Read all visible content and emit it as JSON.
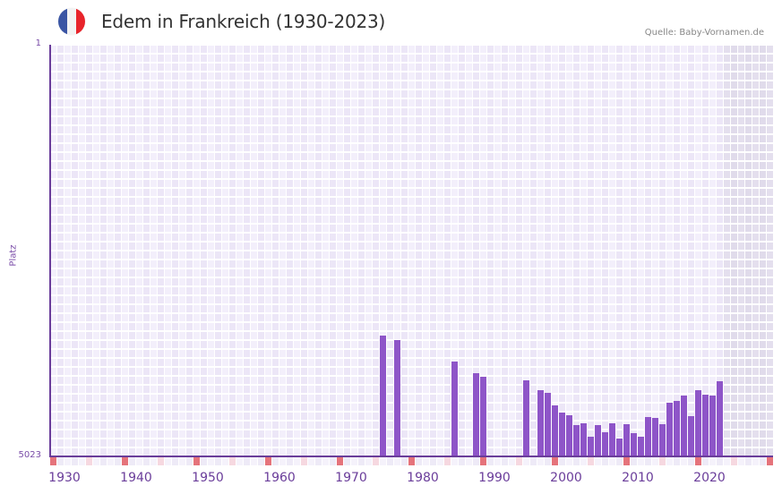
{
  "header": {
    "title": "Edem in Frankreich (1930-2023)",
    "source": "Quelle: Baby-Vornamen.de",
    "flag_icon": "france-flag-icon",
    "flag_colors": [
      "#3a55a4",
      "#f3f3f3",
      "#e8242b"
    ]
  },
  "colors": {
    "bar": "#8e55c8",
    "axis": "#6a3d9a",
    "grid_light": "#f3effb",
    "grid_dark": "#ece6f7",
    "future_shade": "#e4dfee",
    "decade_marker": "#e5737b",
    "half_decade_marker": "#f6d8e0"
  },
  "chart_data": {
    "type": "bar",
    "title": "Edem in Frankreich (1930-2023)",
    "xlabel": "",
    "ylabel": "Platz",
    "y_inverted": true,
    "ylim": [
      1,
      5023
    ],
    "y_ticks": [
      "1",
      "5023"
    ],
    "x_ticks": [
      "1930",
      "1940",
      "1950",
      "1960",
      "1970",
      "1980",
      "1990",
      "2000",
      "2010",
      "2020"
    ],
    "x_range": [
      1930,
      2030
    ],
    "grid": true,
    "legend": null,
    "categories": [
      1976,
      1978,
      1986,
      1989,
      1990,
      1996,
      1998,
      1999,
      2000,
      2001,
      2002,
      2003,
      2004,
      2005,
      2006,
      2007,
      2008,
      2009,
      2010,
      2011,
      2012,
      2013,
      2014,
      2015,
      2016,
      2017,
      2018,
      2019,
      2020,
      2021,
      2022,
      2023
    ],
    "values": [
      3549,
      3604,
      3866,
      4008,
      4052,
      4095,
      4215,
      4248,
      4401,
      4488,
      4521,
      4641,
      4619,
      4783,
      4641,
      4728,
      4619,
      4805,
      4630,
      4739,
      4783,
      4543,
      4554,
      4630,
      4368,
      4346,
      4281,
      4532,
      4215,
      4270,
      4281,
      4106
    ],
    "series": [
      {
        "name": "Platz",
        "values": [
          3549,
          3604,
          3866,
          4008,
          4052,
          4095,
          4215,
          4248,
          4401,
          4488,
          4521,
          4641,
          4619,
          4783,
          4641,
          4728,
          4619,
          4805,
          4630,
          4739,
          4783,
          4543,
          4554,
          4630,
          4368,
          4346,
          4281,
          4532,
          4215,
          4270,
          4281,
          4106
        ]
      }
    ],
    "annotations": [
      "Quelle: Baby-Vornamen.de"
    ]
  },
  "axis": {
    "y_label": "Platz",
    "y_top": "1",
    "y_bottom": "5023",
    "x_labels": [
      "1930",
      "1940",
      "1950",
      "1960",
      "1970",
      "1980",
      "1990",
      "2000",
      "2010",
      "2020"
    ]
  }
}
